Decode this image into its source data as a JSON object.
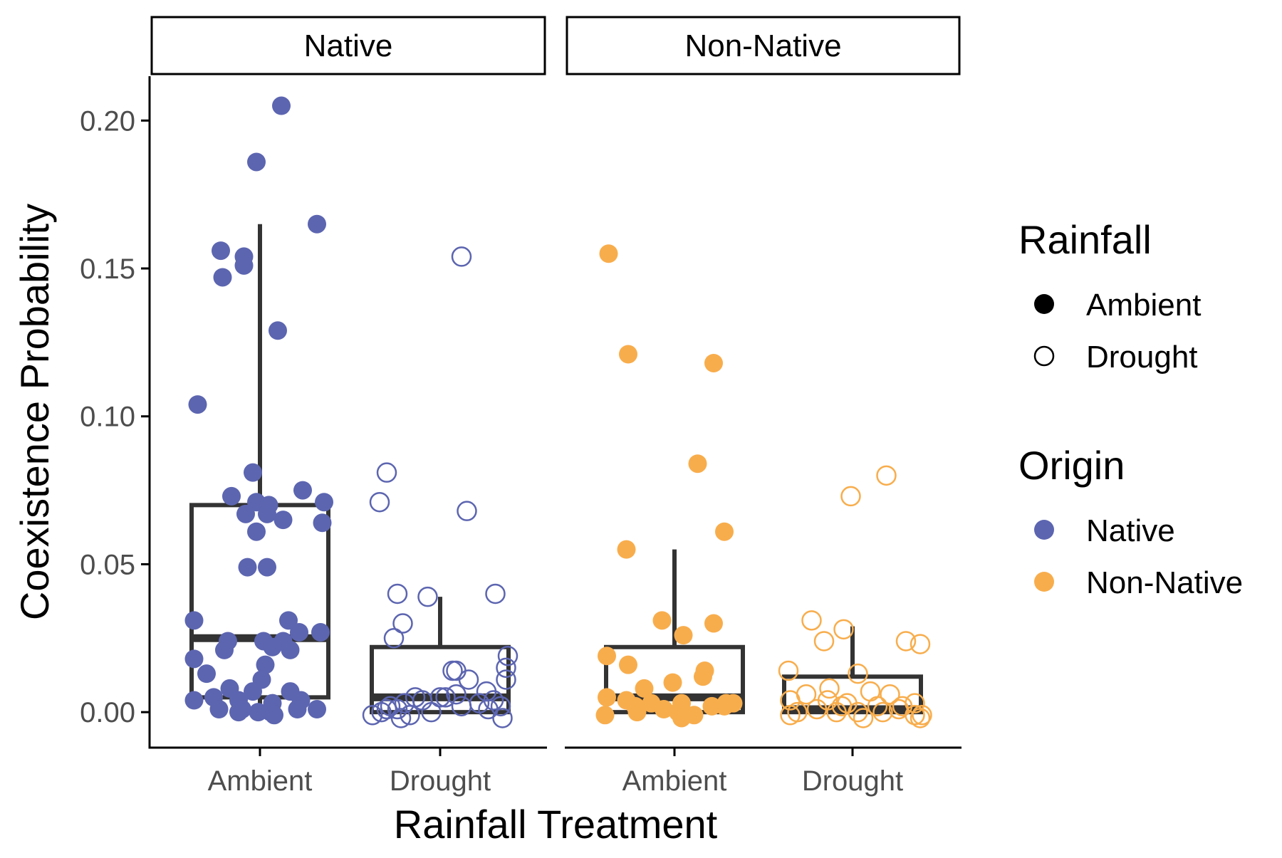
{
  "chart_data": {
    "type": "boxplot-with-jittered-points",
    "xlabel": "Rainfall Treatment",
    "ylabel": "Coexistence Probability",
    "ylim": [
      -0.012,
      0.215
    ],
    "yticks": [
      0.0,
      0.05,
      0.1,
      0.15,
      0.2
    ],
    "ytick_labels": [
      "0.00",
      "0.05",
      "0.10",
      "0.15",
      "0.20"
    ],
    "categories": [
      "Ambient",
      "Drought"
    ],
    "grid": false,
    "legend_placement": "right",
    "facets": [
      {
        "label": "Native",
        "origin": "Native",
        "groups": [
          {
            "treatment": "Ambient",
            "box": {
              "q1": 0.005,
              "median": 0.025,
              "q3": 0.07,
              "whisker_low": 0.0,
              "whisker_high": 0.165
            },
            "points": [
              [
                -0.35,
                0.104
              ],
              [
                0.12,
                0.205
              ],
              [
                -0.02,
                0.186
              ],
              [
                0.32,
                0.165
              ],
              [
                -0.22,
                0.156
              ],
              [
                -0.09,
                0.154
              ],
              [
                -0.21,
                0.147
              ],
              [
                -0.09,
                0.151
              ],
              [
                0.1,
                0.129
              ],
              [
                -0.04,
                0.081
              ],
              [
                0.24,
                0.075
              ],
              [
                -0.16,
                0.073
              ],
              [
                0.36,
                0.071
              ],
              [
                -0.02,
                0.071
              ],
              [
                0.05,
                0.07
              ],
              [
                -0.08,
                0.067
              ],
              [
                0.04,
                0.067
              ],
              [
                0.13,
                0.065
              ],
              [
                0.35,
                0.064
              ],
              [
                -0.02,
                0.061
              ],
              [
                -0.07,
                0.049
              ],
              [
                0.04,
                0.049
              ],
              [
                -0.37,
                0.031
              ],
              [
                0.16,
                0.031
              ],
              [
                0.22,
                0.027
              ],
              [
                0.34,
                0.027
              ],
              [
                -0.18,
                0.024
              ],
              [
                0.02,
                0.024
              ],
              [
                0.13,
                0.024
              ],
              [
                -0.2,
                0.021
              ],
              [
                0.07,
                0.022
              ],
              [
                0.17,
                0.021
              ],
              [
                -0.37,
                0.018
              ],
              [
                0.03,
                0.016
              ],
              [
                -0.3,
                0.013
              ],
              [
                0.01,
                0.011
              ],
              [
                -0.17,
                0.008
              ],
              [
                -0.04,
                0.007
              ],
              [
                0.17,
                0.007
              ],
              [
                -0.37,
                0.004
              ],
              [
                -0.26,
                0.005
              ],
              [
                -0.12,
                0.004
              ],
              [
                0.07,
                0.003
              ],
              [
                0.23,
                0.004
              ],
              [
                -0.23,
                0.001
              ],
              [
                -0.1,
                0.001
              ],
              [
                -0.01,
                0.0
              ],
              [
                0.06,
                0.0
              ],
              [
                0.21,
                0.001
              ],
              [
                0.32,
                0.001
              ],
              [
                -0.12,
                0.0
              ],
              [
                0.08,
                -0.001
              ]
            ]
          },
          {
            "treatment": "Drought",
            "box": {
              "q1": 0.0,
              "median": 0.005,
              "q3": 0.022,
              "whisker_low": 0.0,
              "whisker_high": 0.039
            },
            "points": [
              [
                0.12,
                0.154
              ],
              [
                -0.3,
                0.081
              ],
              [
                -0.34,
                0.071
              ],
              [
                0.15,
                0.068
              ],
              [
                -0.24,
                0.04
              ],
              [
                -0.07,
                0.039
              ],
              [
                0.31,
                0.04
              ],
              [
                -0.21,
                0.03
              ],
              [
                -0.26,
                0.025
              ],
              [
                0.38,
                0.019
              ],
              [
                0.37,
                0.015
              ],
              [
                0.07,
                0.014
              ],
              [
                0.09,
                0.014
              ],
              [
                0.37,
                0.011
              ],
              [
                0.16,
                0.011
              ],
              [
                0.26,
                0.007
              ],
              [
                0.09,
                0.006
              ],
              [
                0.03,
                0.005
              ],
              [
                -0.14,
                0.005
              ],
              [
                0.22,
                0.003
              ],
              [
                0.3,
                0.004
              ],
              [
                0.34,
                0.002
              ],
              [
                -0.38,
                -0.001
              ],
              [
                -0.3,
                0.001
              ],
              [
                -0.24,
                0.001
              ],
              [
                -0.17,
                -0.001
              ],
              [
                -0.2,
                0.003
              ],
              [
                -0.05,
                0.0
              ],
              [
                0.12,
                0.002
              ],
              [
                0.27,
                0.001
              ],
              [
                0.35,
                -0.002
              ],
              [
                -0.33,
                0.0
              ],
              [
                -0.22,
                -0.002
              ],
              [
                -0.1,
                0.004
              ],
              [
                0.0,
                0.005
              ],
              [
                -0.28,
                0.002
              ]
            ]
          }
        ]
      },
      {
        "label": "Non-Native",
        "origin": "Non-Native",
        "groups": [
          {
            "treatment": "Ambient",
            "box": {
              "q1": 0.0,
              "median": 0.005,
              "q3": 0.022,
              "whisker_low": 0.0,
              "whisker_high": 0.055
            },
            "points": [
              [
                -0.37,
                0.155
              ],
              [
                -0.26,
                0.121
              ],
              [
                0.22,
                0.118
              ],
              [
                0.13,
                0.084
              ],
              [
                0.28,
                0.061
              ],
              [
                -0.27,
                0.055
              ],
              [
                -0.07,
                0.031
              ],
              [
                0.22,
                0.03
              ],
              [
                0.05,
                0.026
              ],
              [
                -0.38,
                0.019
              ],
              [
                -0.26,
                0.016
              ],
              [
                0.17,
                0.014
              ],
              [
                0.16,
                0.012
              ],
              [
                -0.01,
                0.01
              ],
              [
                -0.17,
                0.008
              ],
              [
                0.33,
                0.003
              ],
              [
                -0.38,
                0.005
              ],
              [
                -0.27,
                0.004
              ],
              [
                -0.13,
                0.003
              ],
              [
                0.04,
                0.003
              ],
              [
                0.21,
                0.002
              ],
              [
                0.28,
                0.002
              ],
              [
                -0.39,
                -0.001
              ],
              [
                -0.21,
                0.0
              ],
              [
                -0.06,
                0.001
              ],
              [
                0.02,
                0.0
              ],
              [
                0.11,
                -0.001
              ],
              [
                0.04,
                -0.002
              ],
              [
                -0.22,
                0.002
              ],
              [
                0.29,
                0.003
              ]
            ]
          },
          {
            "treatment": "Drought",
            "box": {
              "q1": 0.0,
              "median": 0.001,
              "q3": 0.012,
              "whisker_low": 0.0,
              "whisker_high": 0.029
            },
            "points": [
              [
                0.19,
                0.08
              ],
              [
                -0.01,
                0.073
              ],
              [
                -0.23,
                0.031
              ],
              [
                -0.05,
                0.028
              ],
              [
                -0.16,
                0.024
              ],
              [
                0.3,
                0.024
              ],
              [
                0.38,
                0.023
              ],
              [
                0.03,
                0.013
              ],
              [
                -0.36,
                0.014
              ],
              [
                -0.13,
                0.008
              ],
              [
                0.1,
                0.007
              ],
              [
                0.21,
                0.006
              ],
              [
                -0.26,
                0.006
              ],
              [
                0.35,
                0.003
              ],
              [
                -0.35,
                0.004
              ],
              [
                -0.14,
                0.004
              ],
              [
                -0.03,
                0.003
              ],
              [
                0.14,
                0.002
              ],
              [
                0.26,
                0.001
              ],
              [
                -0.31,
                0.0
              ],
              [
                -0.2,
                0.001
              ],
              [
                -0.09,
                0.0
              ],
              [
                0.03,
                0.0
              ],
              [
                0.35,
                -0.001
              ],
              [
                0.38,
                -0.002
              ],
              [
                -0.35,
                -0.001
              ],
              [
                0.06,
                -0.002
              ],
              [
                0.17,
                0.0
              ],
              [
                -0.06,
                0.002
              ],
              [
                0.28,
                0.002
              ],
              [
                0.39,
                -0.001
              ]
            ]
          }
        ]
      }
    ],
    "legends": [
      {
        "title": "Rainfall",
        "items": [
          {
            "label": "Ambient",
            "shape": "filled-circle",
            "color": "#000000"
          },
          {
            "label": "Drought",
            "shape": "open-circle",
            "color": "#000000"
          }
        ]
      },
      {
        "title": "Origin",
        "items": [
          {
            "label": "Native",
            "shape": "filled-circle",
            "color": "#5c65b0"
          },
          {
            "label": "Non-Native",
            "shape": "filled-circle",
            "color": "#f8ad4c"
          }
        ]
      }
    ],
    "colors": {
      "Native": "#5c65b0",
      "Non-Native": "#f8ad4c",
      "box": "#333333",
      "axis": "#000000"
    }
  }
}
